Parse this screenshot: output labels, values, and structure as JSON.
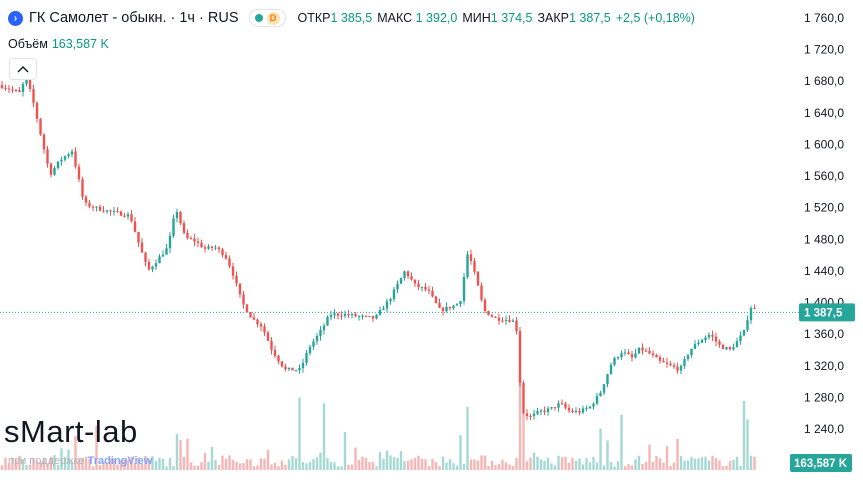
{
  "header": {
    "symbol_icon": "chevron-right-icon",
    "title": "ГК Самолет - обыкн. · 1ч · RUS",
    "status_dot_color": "#26a69a",
    "delay_badge": "D",
    "ohlc": [
      {
        "label": "ОТКР",
        "value": "1 385,5"
      },
      {
        "label": "МАКС",
        "value": "1 392,0"
      },
      {
        "label": "МИН",
        "value": "1 374,5"
      },
      {
        "label": "ЗАКР",
        "value": "1 387,5"
      }
    ],
    "change": "+2,5 (+0,18%)"
  },
  "volume_legend": {
    "label": "Объём",
    "value": "163,587 K"
  },
  "watermark": "sMart-lab",
  "support": {
    "prefix": "при поддержке",
    "brand": "TradingView"
  },
  "chart_data": {
    "type": "candlestick",
    "title": "ГК Самолет - обыкн. · 1ч · RUS",
    "y_axis": {
      "ticks": [
        "1 760,0",
        "1 720,0",
        "1 680,0",
        "1 640,0",
        "1 600,0",
        "1 560,0",
        "1 520,0",
        "1 480,0",
        "1 440,0",
        "1 400,0",
        "1 360,0",
        "1 320,0",
        "1 280,0",
        "1 240,0"
      ],
      "tick_values": [
        1760,
        1720,
        1680,
        1640,
        1600,
        1560,
        1520,
        1480,
        1440,
        1400,
        1360,
        1320,
        1280,
        1240
      ],
      "range": [
        1212,
        1770
      ],
      "position": "right"
    },
    "last_price": {
      "value": 1387.5,
      "label": "1 387,5",
      "color": "#26a69a"
    },
    "last_volume": {
      "label": "163,587 K",
      "color": "#26a69a"
    },
    "up_color": "#26a69a",
    "down_color": "#ef5350",
    "grid": false,
    "key_points": [
      [
        0,
        1675
      ],
      [
        10,
        1670
      ],
      [
        20,
        1665
      ],
      [
        26,
        1686
      ],
      [
        34,
        1650
      ],
      [
        42,
        1605
      ],
      [
        50,
        1562
      ],
      [
        60,
        1580
      ],
      [
        72,
        1592
      ],
      [
        78,
        1560
      ],
      [
        84,
        1525
      ],
      [
        95,
        1520
      ],
      [
        110,
        1515
      ],
      [
        130,
        1510
      ],
      [
        140,
        1470
      ],
      [
        148,
        1440
      ],
      [
        158,
        1455
      ],
      [
        168,
        1470
      ],
      [
        176,
        1520
      ],
      [
        185,
        1482
      ],
      [
        195,
        1478
      ],
      [
        205,
        1468
      ],
      [
        215,
        1470
      ],
      [
        225,
        1460
      ],
      [
        232,
        1440
      ],
      [
        242,
        1400
      ],
      [
        252,
        1380
      ],
      [
        262,
        1370
      ],
      [
        272,
        1340
      ],
      [
        285,
        1315
      ],
      [
        300,
        1315
      ],
      [
        310,
        1345
      ],
      [
        320,
        1362
      ],
      [
        330,
        1385
      ],
      [
        345,
        1385
      ],
      [
        360,
        1382
      ],
      [
        375,
        1380
      ],
      [
        390,
        1405
      ],
      [
        405,
        1440
      ],
      [
        415,
        1422
      ],
      [
        428,
        1415
      ],
      [
        440,
        1390
      ],
      [
        452,
        1395
      ],
      [
        460,
        1400
      ],
      [
        468,
        1465
      ],
      [
        476,
        1430
      ],
      [
        484,
        1390
      ],
      [
        495,
        1380
      ],
      [
        510,
        1378
      ],
      [
        516,
        1375
      ],
      [
        522,
        1262
      ],
      [
        530,
        1255
      ],
      [
        540,
        1262
      ],
      [
        550,
        1265
      ],
      [
        560,
        1272
      ],
      [
        570,
        1262
      ],
      [
        580,
        1262
      ],
      [
        590,
        1268
      ],
      [
        600,
        1285
      ],
      [
        612,
        1325
      ],
      [
        622,
        1338
      ],
      [
        632,
        1330
      ],
      [
        640,
        1342
      ],
      [
        650,
        1335
      ],
      [
        660,
        1325
      ],
      [
        670,
        1320
      ],
      [
        680,
        1315
      ],
      [
        690,
        1340
      ],
      [
        700,
        1352
      ],
      [
        710,
        1360
      ],
      [
        720,
        1345
      ],
      [
        730,
        1340
      ],
      [
        738,
        1352
      ],
      [
        745,
        1365
      ],
      [
        750,
        1395
      ],
      [
        758,
        1388
      ]
    ],
    "volume_peaks": [
      {
        "x": 300,
        "v": 0.63
      },
      {
        "x": 325,
        "v": 0.58
      },
      {
        "x": 467,
        "v": 0.55
      },
      {
        "x": 519,
        "v": 1.0
      },
      {
        "x": 524,
        "v": 0.48
      },
      {
        "x": 622,
        "v": 0.48
      },
      {
        "x": 600,
        "v": 0.36
      },
      {
        "x": 743,
        "v": 0.6
      },
      {
        "x": 748,
        "v": 0.44
      },
      {
        "x": 180,
        "v": 0.26
      },
      {
        "x": 96,
        "v": 0.28
      },
      {
        "x": 345,
        "v": 0.33
      }
    ]
  }
}
